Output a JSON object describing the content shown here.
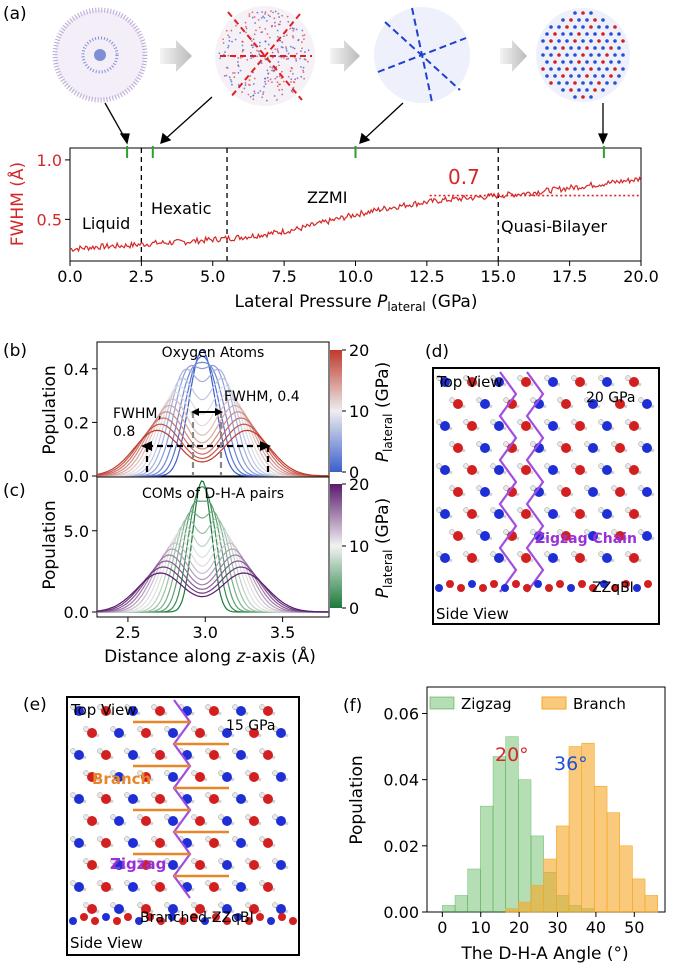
{
  "colors": {
    "red": "#d62728",
    "blue": "#1f3fbf",
    "green": "#2ca02c",
    "purple": "#9b30d9",
    "orange": "#e8862a",
    "black": "#000000"
  },
  "panel_a": {
    "label": "(a)",
    "phases": [
      "Liquid",
      "Hexatic",
      "ZZMI",
      "Quasi-Bilayer"
    ],
    "annotation": "0.7",
    "chart_data": {
      "type": "line",
      "ylabel": "FWHM (Å)",
      "xlabel": "Lateral Pressure ",
      "xlabel_var": "P",
      "xlabel_sub": "lateral",
      "xlabel_unit": " (GPa)",
      "xlim": [
        0,
        20
      ],
      "ylim": [
        0.15,
        1.1
      ],
      "xticks": [
        "0.0",
        "2.5",
        "5.0",
        "7.5",
        "10.0",
        "12.5",
        "15.0",
        "17.5",
        "20.0"
      ],
      "yticks": [
        "0.5",
        "1.0"
      ],
      "phase_boundaries": [
        2.5,
        5.5,
        15.0
      ],
      "snapshot_markers": [
        2.0,
        2.9,
        10.0,
        18.7
      ],
      "reference_level": 0.7,
      "x": [
        0,
        1,
        2,
        2.5,
        3,
        4,
        5,
        5.5,
        6,
        7,
        8,
        9,
        10,
        11,
        12,
        13,
        14,
        15,
        16,
        17,
        18,
        19,
        20
      ],
      "y": [
        0.25,
        0.27,
        0.28,
        0.29,
        0.3,
        0.31,
        0.33,
        0.34,
        0.35,
        0.38,
        0.42,
        0.48,
        0.54,
        0.59,
        0.63,
        0.66,
        0.68,
        0.7,
        0.72,
        0.75,
        0.78,
        0.81,
        0.84
      ]
    }
  },
  "panel_b": {
    "label": "(b)",
    "title": "Oxygen Atoms",
    "fwhm_left_1": "FWHM,",
    "fwhm_left_2": "0.8",
    "fwhm_right": "FWHM, 0.4",
    "chart_data": {
      "type": "line",
      "ylabel": "Population",
      "yticks": [
        "0.0",
        "0.2",
        "0.4"
      ],
      "ylim": [
        0,
        0.5
      ],
      "colorbar_label_var": "P",
      "colorbar_label_sub": "lateral",
      "colorbar_label_unit": " (GPa)",
      "colorbar_ticks": [
        "0",
        "10",
        "20"
      ],
      "series_summary": {
        "low_pressure_peak": 0.47,
        "high_pressure_peak": 0.17,
        "peak_positions_high": [
          2.72,
          3.25
        ]
      }
    }
  },
  "panel_c": {
    "label": "(c)",
    "title": "COMs of D-H-A pairs",
    "chart_data": {
      "type": "line",
      "ylabel": "Population",
      "xlabel": "Distance along ",
      "xlabel_var": "z",
      "xlabel_unit": "-axis (Å)",
      "xlim": [
        2.3,
        3.8
      ],
      "xticks": [
        "2.5",
        "3.0",
        "3.5"
      ],
      "yticks": [
        "0.0",
        "5.0"
      ],
      "ylim": [
        0,
        8
      ],
      "colorbar_label_var": "P",
      "colorbar_label_sub": "lateral",
      "colorbar_label_unit": " (GPa)",
      "colorbar_ticks": [
        "0",
        "10",
        "20"
      ],
      "series_summary": {
        "low_pressure_peak": 7.2,
        "high_pressure_peak": 2.4
      }
    }
  },
  "panel_d": {
    "label": "(d)",
    "top_view": "Top View",
    "pressure": "20 GPa",
    "chain": "Zigzag Chain",
    "phase": "ZZqBI",
    "side_view": "Side View"
  },
  "panel_e": {
    "label": "(e)",
    "top_view": "Top View",
    "pressure": "15 GPa",
    "branch": "Branch",
    "zigzag": "Zigzag",
    "phase": "Branched-ZZqBI",
    "side_view": "Side View"
  },
  "panel_f": {
    "label": "(f)",
    "peak_left": "20°",
    "peak_right": "36°",
    "chart_data": {
      "type": "bar",
      "xlabel": "The D-H-A Angle (°)",
      "ylabel": "Population",
      "xlim": [
        -4,
        58
      ],
      "ylim": [
        0,
        0.068
      ],
      "xticks": [
        "0",
        "10",
        "20",
        "30",
        "40",
        "50"
      ],
      "yticks": [
        "0.00",
        "0.02",
        "0.04",
        "0.06"
      ],
      "bin_width": 3.3,
      "series": [
        {
          "name": "Zigzag",
          "color": "#2ca02c",
          "bins": [
            3.3,
            6.6,
            9.9,
            13.2,
            16.5,
            19.8,
            23.1,
            26.4,
            29.7,
            33.0,
            36.3,
            39.6
          ],
          "values": [
            0.002,
            0.005,
            0.013,
            0.032,
            0.047,
            0.053,
            0.04,
            0.023,
            0.012,
            0.005,
            0.002,
            0.001
          ]
        },
        {
          "name": "Branch",
          "color": "#f5a623",
          "bins": [
            19.8,
            23.1,
            26.4,
            29.7,
            33.0,
            36.3,
            39.6,
            42.9,
            46.2,
            49.5,
            52.8,
            56.1
          ],
          "values": [
            0.001,
            0.003,
            0.008,
            0.016,
            0.026,
            0.05,
            0.051,
            0.038,
            0.03,
            0.02,
            0.01,
            0.005
          ]
        }
      ]
    }
  }
}
